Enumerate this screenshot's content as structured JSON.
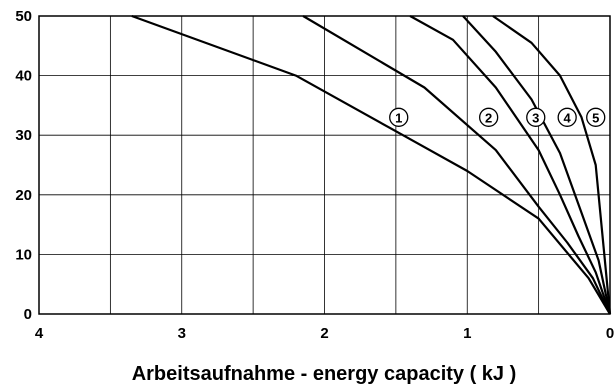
{
  "chart_data": {
    "type": "line",
    "title": "",
    "xlabel": "Arbeitsaufnahme - energy capacity ( kJ )",
    "ylabel": "",
    "x_reversed": true,
    "xlim": [
      0,
      4
    ],
    "ylim": [
      0,
      50
    ],
    "x_ticks": [
      "4",
      "3",
      "2",
      "1",
      "0"
    ],
    "y_ticks": [
      "0",
      "10",
      "20",
      "30",
      "40",
      "50"
    ],
    "grid": true,
    "series": [
      {
        "label_mark": "1",
        "label_x": 1.48,
        "label_y": 33,
        "points": [
          [
            0,
            0
          ],
          [
            0.15,
            6
          ],
          [
            0.5,
            16
          ],
          [
            1.0,
            24
          ],
          [
            1.45,
            30
          ],
          [
            2.2,
            40
          ],
          [
            3.35,
            50
          ]
        ]
      },
      {
        "label_mark": "2",
        "label_x": 0.85,
        "label_y": 33,
        "points": [
          [
            0,
            0
          ],
          [
            0.12,
            6
          ],
          [
            0.3,
            12
          ],
          [
            0.5,
            18
          ],
          [
            0.8,
            27.5
          ],
          [
            1.3,
            38
          ],
          [
            2.15,
            50
          ]
        ]
      },
      {
        "label_mark": "3",
        "label_x": 0.52,
        "label_y": 33,
        "points": [
          [
            0,
            0
          ],
          [
            0.1,
            7
          ],
          [
            0.22,
            13
          ],
          [
            0.35,
            20
          ],
          [
            0.5,
            27.5
          ],
          [
            0.8,
            38
          ],
          [
            1.1,
            46
          ],
          [
            1.4,
            50
          ]
        ]
      },
      {
        "label_mark": "4",
        "label_x": 0.3,
        "label_y": 33,
        "points": [
          [
            0,
            0
          ],
          [
            0.08,
            9
          ],
          [
            0.2,
            17
          ],
          [
            0.35,
            27
          ],
          [
            0.55,
            36
          ],
          [
            0.8,
            44
          ],
          [
            1.03,
            50
          ]
        ]
      },
      {
        "label_mark": "5",
        "label_x": 0.1,
        "label_y": 33,
        "points": [
          [
            0,
            0
          ],
          [
            0.04,
            10
          ],
          [
            0.1,
            25
          ],
          [
            0.2,
            33
          ],
          [
            0.35,
            40
          ],
          [
            0.55,
            45.5
          ],
          [
            0.82,
            50
          ]
        ]
      }
    ]
  }
}
